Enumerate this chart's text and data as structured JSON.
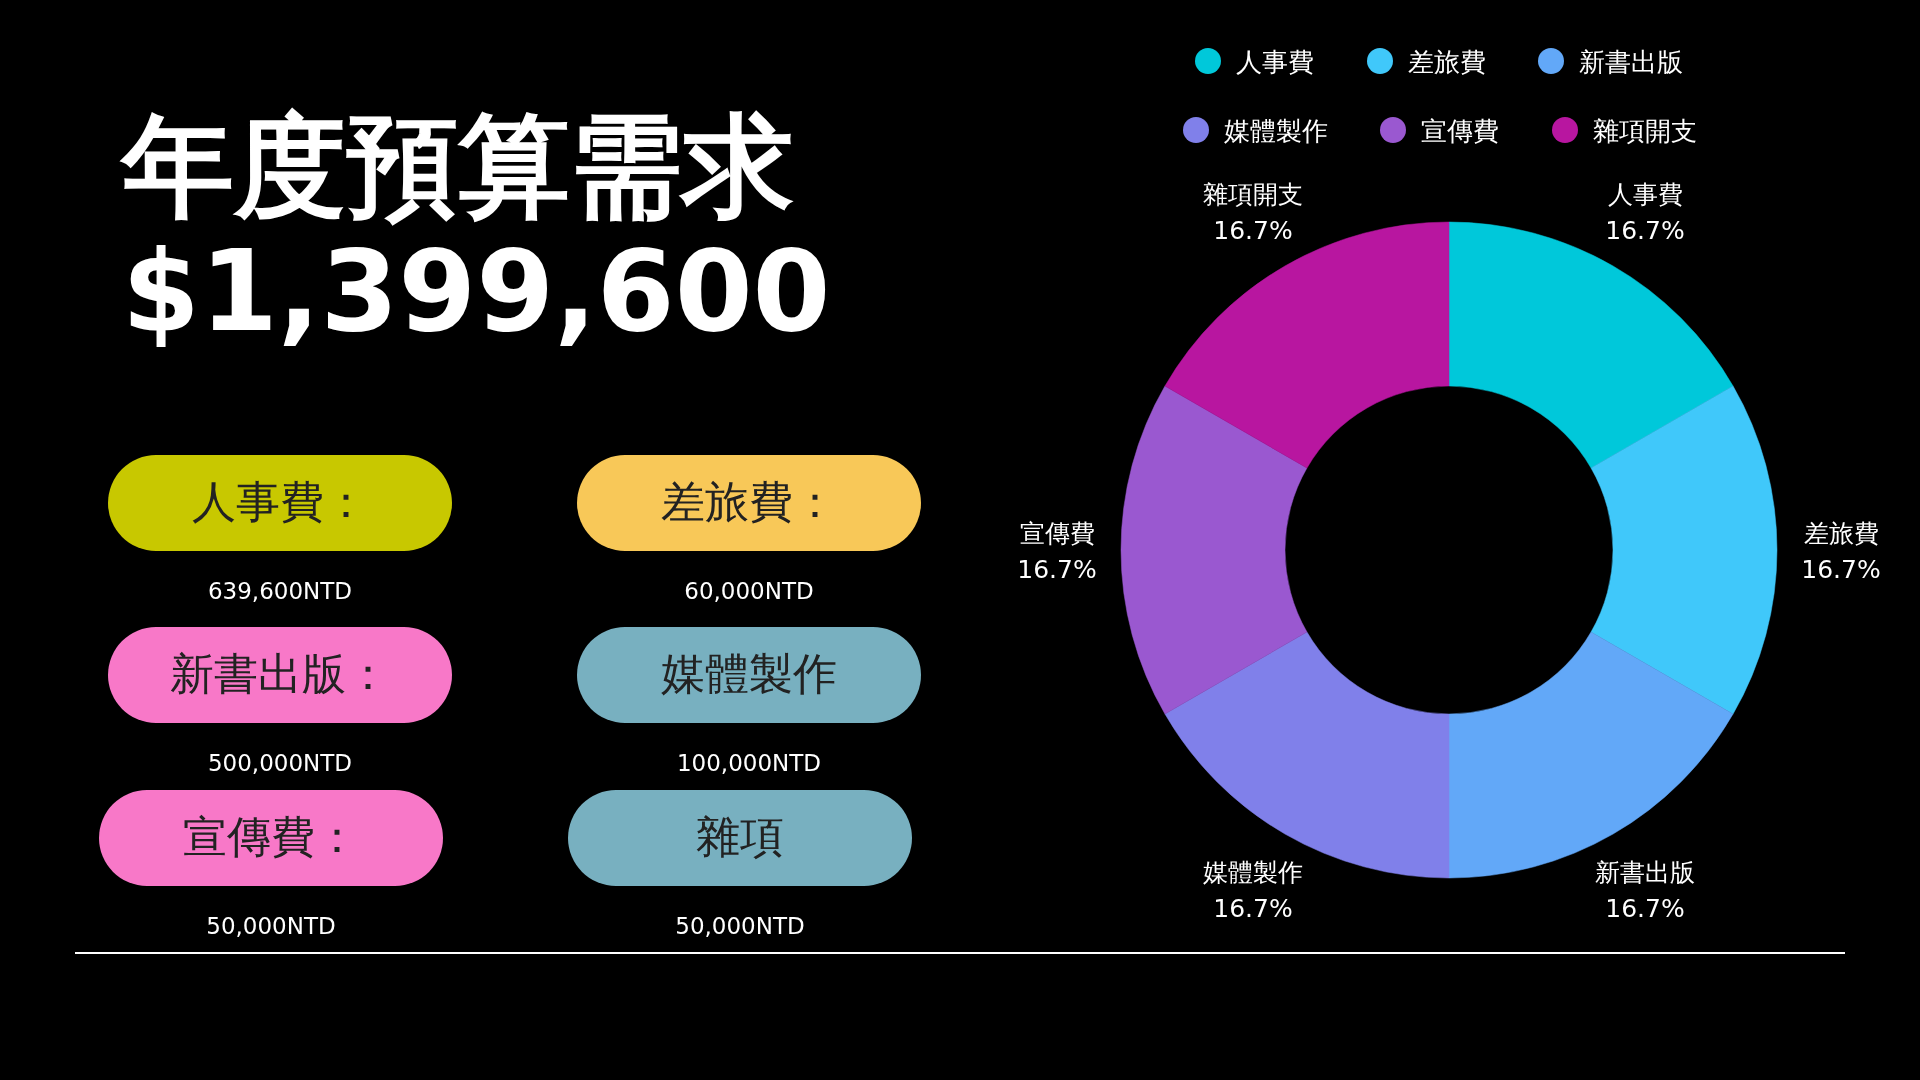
{
  "chart_data": [
    {
      "type": "other",
      "title": "年度預算需求",
      "subtitle": "$1,399,600",
      "annotations": [
        "人事費：",
        "639,600NTD",
        "差旅費：",
        "60,000NTD",
        "新書出版：",
        "500,000NTD",
        "媒體製作",
        "100,000NTD",
        "宣傳費：",
        "50,000NTD",
        "雜項",
        "50,000NTD"
      ]
    },
    {
      "type": "donut",
      "categories": [
        "人事費",
        "差旅費",
        "新書出版",
        "媒體製作",
        "宣傳費",
        "雜項開支"
      ],
      "values": [
        16.7,
        16.7,
        16.7,
        16.7,
        16.7,
        16.7
      ],
      "value_labels": [
        "16.7%",
        "16.7%",
        "16.7%",
        "16.7%",
        "16.7%",
        "16.7%"
      ],
      "colors": [
        "#00c8da",
        "#40c8fa",
        "#62a8f8",
        "#8080ea",
        "#9a58d0",
        "#b816a0"
      ],
      "legend": "top"
    }
  ]
}
